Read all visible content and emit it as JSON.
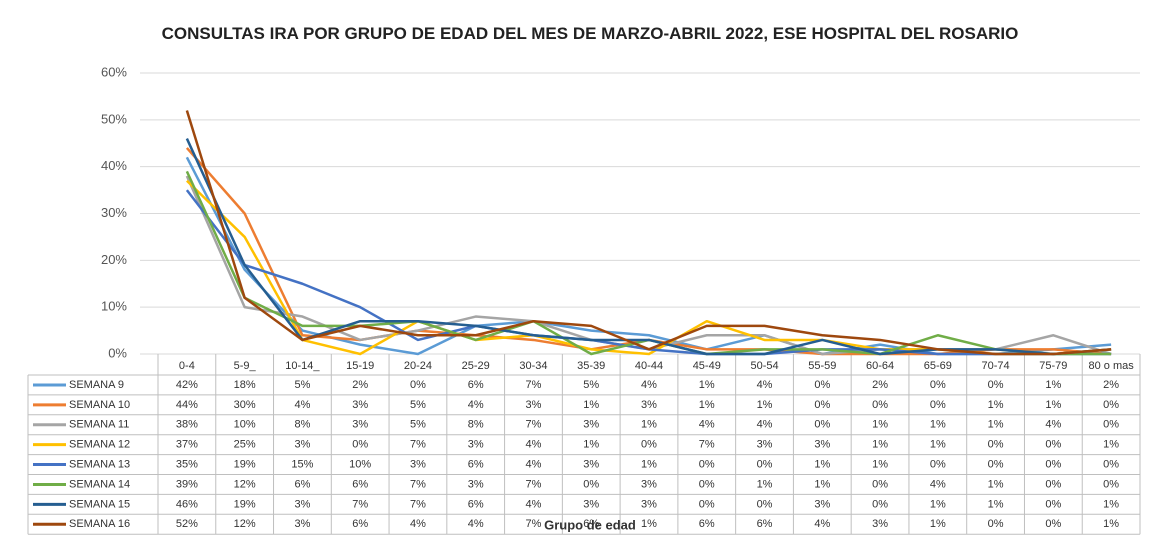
{
  "chart_data": {
    "type": "line",
    "title": "CONSULTAS IRA POR GRUPO DE EDAD DEL MES DE MARZO-ABRIL 2022, ESE HOSPITAL DEL ROSARIO",
    "x_label": "Grupo de edad",
    "categories": [
      "0-4",
      "5-9_",
      "10-14_",
      "15-19",
      "20-24",
      "25-29",
      "30-34",
      "35-39",
      "40-44",
      "45-49",
      "50-54",
      "55-59",
      "60-64",
      "65-69",
      "70-74",
      "75-79",
      "80 o mas"
    ],
    "ylim": [
      0,
      60
    ],
    "yticks": [
      {
        "value": 0,
        "label": "0%"
      },
      {
        "value": 10,
        "label": "10%"
      },
      {
        "value": 20,
        "label": "20%"
      },
      {
        "value": 30,
        "label": "30%"
      },
      {
        "value": 40,
        "label": "40%"
      },
      {
        "value": 50,
        "label": "50%"
      },
      {
        "value": 60,
        "label": "60%"
      }
    ],
    "grid": true,
    "series": [
      {
        "name": "SEMANA 9",
        "color": "#5b9bd5",
        "values": [
          42,
          18,
          5,
          2,
          0,
          6,
          7,
          5,
          4,
          1,
          4,
          0,
          2,
          0,
          0,
          1,
          2
        ],
        "value_labels": [
          "42%",
          "18%",
          "5%",
          "2%",
          "0%",
          "6%",
          "7%",
          "5%",
          "4%",
          "1%",
          "4%",
          "0%",
          "2%",
          "0%",
          "0%",
          "1%",
          "2%"
        ]
      },
      {
        "name": "SEMANA 10",
        "color": "#ed7d31",
        "values": [
          44,
          30,
          4,
          3,
          5,
          4,
          3,
          1,
          3,
          1,
          1,
          0,
          0,
          0,
          1,
          1,
          0
        ],
        "value_labels": [
          "44%",
          "30%",
          "4%",
          "3%",
          "5%",
          "4%",
          "3%",
          "1%",
          "3%",
          "1%",
          "1%",
          "0%",
          "0%",
          "0%",
          "1%",
          "1%",
          "0%"
        ]
      },
      {
        "name": "SEMANA 11",
        "color": "#a5a5a5",
        "values": [
          38,
          10,
          8,
          3,
          5,
          8,
          7,
          3,
          1,
          4,
          4,
          0,
          1,
          1,
          1,
          4,
          0
        ],
        "value_labels": [
          "38%",
          "10%",
          "8%",
          "3%",
          "5%",
          "8%",
          "7%",
          "3%",
          "1%",
          "4%",
          "4%",
          "0%",
          "1%",
          "1%",
          "1%",
          "4%",
          "0%"
        ]
      },
      {
        "name": "SEMANA 12",
        "color": "#ffc000",
        "values": [
          37,
          25,
          3,
          0,
          7,
          3,
          4,
          1,
          0,
          7,
          3,
          3,
          1,
          1,
          0,
          0,
          1
        ],
        "value_labels": [
          "37%",
          "25%",
          "3%",
          "0%",
          "7%",
          "3%",
          "4%",
          "1%",
          "0%",
          "7%",
          "3%",
          "3%",
          "1%",
          "1%",
          "0%",
          "0%",
          "1%"
        ]
      },
      {
        "name": "SEMANA 13",
        "color": "#4472c4",
        "values": [
          35,
          19,
          15,
          10,
          3,
          6,
          4,
          3,
          1,
          0,
          0,
          1,
          1,
          0,
          0,
          0,
          0
        ],
        "value_labels": [
          "35%",
          "19%",
          "15%",
          "10%",
          "3%",
          "6%",
          "4%",
          "3%",
          "1%",
          "0%",
          "0%",
          "1%",
          "1%",
          "0%",
          "0%",
          "0%",
          "0%"
        ]
      },
      {
        "name": "SEMANA 14",
        "color": "#70ad47",
        "values": [
          39,
          12,
          6,
          6,
          7,
          3,
          7,
          0,
          3,
          0,
          1,
          1,
          0,
          4,
          1,
          0,
          0
        ],
        "value_labels": [
          "39%",
          "12%",
          "6%",
          "6%",
          "7%",
          "3%",
          "7%",
          "0%",
          "3%",
          "0%",
          "1%",
          "1%",
          "0%",
          "4%",
          "1%",
          "0%",
          "0%"
        ]
      },
      {
        "name": "SEMANA 15",
        "color": "#255e91",
        "values": [
          46,
          19,
          3,
          7,
          7,
          6,
          4,
          3,
          3,
          0,
          0,
          3,
          0,
          1,
          1,
          0,
          1
        ],
        "value_labels": [
          "46%",
          "19%",
          "3%",
          "7%",
          "7%",
          "6%",
          "4%",
          "3%",
          "3%",
          "0%",
          "0%",
          "3%",
          "0%",
          "1%",
          "1%",
          "0%",
          "1%"
        ]
      },
      {
        "name": "SEMANA 16",
        "color": "#9e480e",
        "values": [
          52,
          12,
          3,
          6,
          4,
          4,
          7,
          6,
          1,
          6,
          6,
          4,
          3,
          1,
          0,
          0,
          1
        ],
        "value_labels": [
          "52%",
          "12%",
          "3%",
          "6%",
          "4%",
          "4%",
          "7%",
          "6%",
          "1%",
          "6%",
          "6%",
          "4%",
          "3%",
          "1%",
          "0%",
          "0%",
          "1%"
        ]
      }
    ]
  }
}
